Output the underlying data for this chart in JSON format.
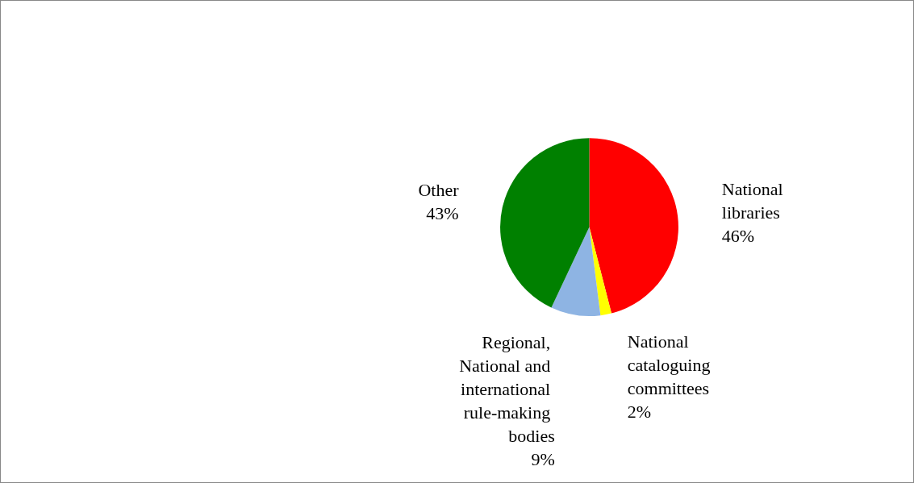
{
  "chart_data": {
    "type": "pie",
    "categories": [
      "National libraries",
      "National cataloguing committees",
      "Regional, National and international rule-making bodies",
      "Other"
    ],
    "values": [
      46,
      2,
      9,
      43
    ],
    "value_labels": [
      "46%",
      "2%",
      "9%",
      "43%"
    ],
    "colors": [
      "#ff0000",
      "#ffff00",
      "#8eb4e3",
      "#008000"
    ],
    "legend": false
  }
}
